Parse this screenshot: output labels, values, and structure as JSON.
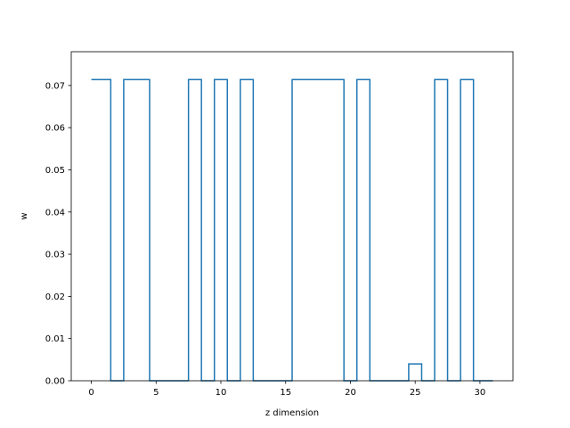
{
  "chart_data": {
    "type": "line",
    "drawstyle": "steps-mid",
    "title": "",
    "xlabel": "z dimension",
    "ylabel": "w",
    "xlim": [
      -1.55,
      32.55
    ],
    "ylim": [
      0,
      0.078
    ],
    "grid": false,
    "line_color": "#1f77b4",
    "x": [
      0,
      1,
      2,
      3,
      4,
      5,
      6,
      7,
      8,
      9,
      10,
      11,
      12,
      13,
      14,
      15,
      16,
      17,
      18,
      19,
      20,
      21,
      22,
      23,
      24,
      25,
      26,
      27,
      28,
      29,
      30,
      31
    ],
    "series": [
      {
        "values": [
          0.0714,
          0.0714,
          0,
          0.0714,
          0.0714,
          0,
          0,
          0,
          0.0714,
          0,
          0.0714,
          0,
          0.0714,
          0,
          0,
          0,
          0.0714,
          0.0714,
          0.0714,
          0.0714,
          0,
          0.0714,
          0,
          0,
          0,
          0.004,
          0,
          0.0714,
          0,
          0.0714,
          0,
          0
        ]
      }
    ],
    "x_ticks": [
      {
        "value": 0,
        "label": "0"
      },
      {
        "value": 5,
        "label": "5"
      },
      {
        "value": 10,
        "label": "10"
      },
      {
        "value": 15,
        "label": "15"
      },
      {
        "value": 20,
        "label": "20"
      },
      {
        "value": 25,
        "label": "25"
      },
      {
        "value": 30,
        "label": "30"
      }
    ],
    "y_ticks": [
      {
        "value": 0,
        "label": "0.00"
      },
      {
        "value": 0.01,
        "label": "0.01"
      },
      {
        "value": 0.02,
        "label": "0.02"
      },
      {
        "value": 0.03,
        "label": "0.03"
      },
      {
        "value": 0.04,
        "label": "0.04"
      },
      {
        "value": 0.05,
        "label": "0.05"
      },
      {
        "value": 0.06,
        "label": "0.06"
      },
      {
        "value": 0.07,
        "label": "0.07"
      }
    ]
  }
}
